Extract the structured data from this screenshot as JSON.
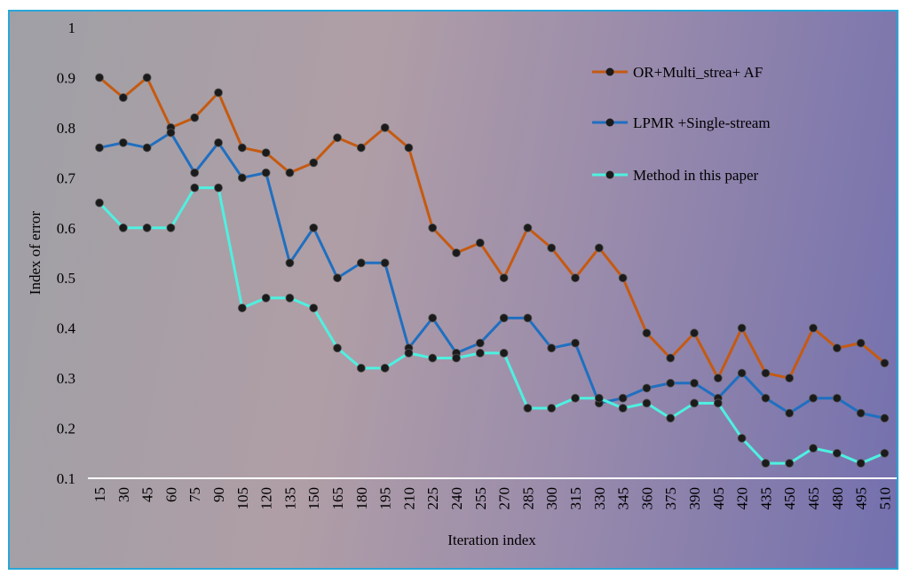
{
  "chart_data": {
    "type": "line",
    "xlabel": "Iteration index",
    "ylabel": "Index of error",
    "ylim": [
      0.1,
      1
    ],
    "yticks": [
      "0.1",
      "0.2",
      "0.3",
      "0.4",
      "0.5",
      "0.6",
      "0.7",
      "0.8",
      "0.9",
      "1"
    ],
    "categories": [
      "15",
      "30",
      "45",
      "60",
      "75",
      "90",
      "105",
      "120",
      "135",
      "150",
      "165",
      "180",
      "195",
      "210",
      "225",
      "240",
      "255",
      "270",
      "285",
      "300",
      "315",
      "330",
      "345",
      "360",
      "375",
      "390",
      "405",
      "420",
      "435",
      "450",
      "465",
      "480",
      "495",
      "510"
    ],
    "legend_position": "top-right",
    "grid": false,
    "series": [
      {
        "name": "OR+Multi_strea+ AF",
        "color": "#c55a11",
        "values": [
          0.9,
          0.86,
          0.9,
          0.8,
          0.82,
          0.87,
          0.76,
          0.75,
          0.71,
          0.73,
          0.78,
          0.76,
          0.8,
          0.76,
          0.6,
          0.55,
          0.57,
          0.5,
          0.6,
          0.56,
          0.5,
          0.56,
          0.5,
          0.39,
          0.34,
          0.39,
          0.3,
          0.4,
          0.31,
          0.3,
          0.4,
          0.36,
          0.37,
          0.33
        ]
      },
      {
        "name": "LPMR +Single-stream",
        "color": "#1f6fc0",
        "values": [
          0.76,
          0.77,
          0.76,
          0.79,
          0.71,
          0.77,
          0.7,
          0.71,
          0.53,
          0.6,
          0.5,
          0.53,
          0.53,
          0.36,
          0.42,
          0.35,
          0.37,
          0.42,
          0.42,
          0.36,
          0.37,
          0.25,
          0.26,
          0.28,
          0.29,
          0.29,
          0.26,
          0.31,
          0.26,
          0.23,
          0.26,
          0.26,
          0.23,
          0.22
        ]
      },
      {
        "name": "Method in this paper",
        "color": "#4ef0e0",
        "values": [
          0.65,
          0.6,
          0.6,
          0.6,
          0.68,
          0.68,
          0.44,
          0.46,
          0.46,
          0.44,
          0.36,
          0.32,
          0.32,
          0.35,
          0.34,
          0.34,
          0.35,
          0.35,
          0.24,
          0.24,
          0.26,
          0.26,
          0.24,
          0.25,
          0.22,
          0.25,
          0.25,
          0.18,
          0.13,
          0.13,
          0.16,
          0.15,
          0.13,
          0.15
        ]
      }
    ]
  }
}
